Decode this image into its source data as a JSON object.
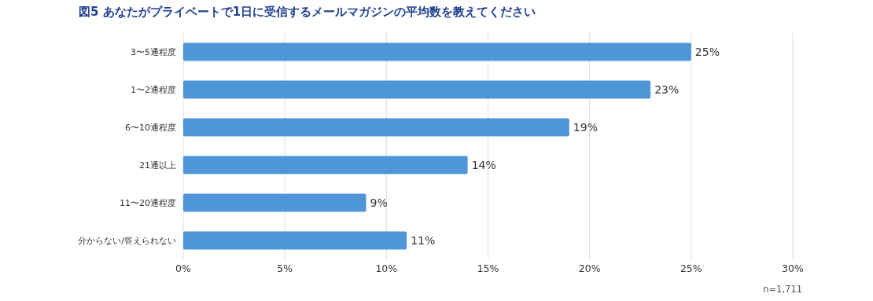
{
  "chart_data": {
    "type": "bar",
    "orientation": "horizontal",
    "title": "図5 あなたがプライベートで1日に受信するメールマガジンの平均数を教えてください",
    "categories": [
      "3〜5通程度",
      "1〜2通程度",
      "6〜10通程度",
      "21通以上",
      "11〜20通程度",
      "分からない/答えられない"
    ],
    "values": [
      25,
      23,
      19,
      14,
      9,
      11
    ],
    "value_labels": [
      "25%",
      "23%",
      "19%",
      "14%",
      "9%",
      "11%"
    ],
    "color": "#4f96d9",
    "xlim": [
      0,
      30
    ],
    "xticks": [
      {
        "value": 0,
        "label": "0%"
      },
      {
        "value": 5,
        "label": "5%"
      },
      {
        "value": 10,
        "label": "10%"
      },
      {
        "value": 15,
        "label": "15%"
      },
      {
        "value": 20,
        "label": "20%"
      },
      {
        "value": 25,
        "label": "25%"
      },
      {
        "value": 30,
        "label": "30%"
      }
    ],
    "grid": "x",
    "annotations": [
      "n=1,711"
    ]
  }
}
